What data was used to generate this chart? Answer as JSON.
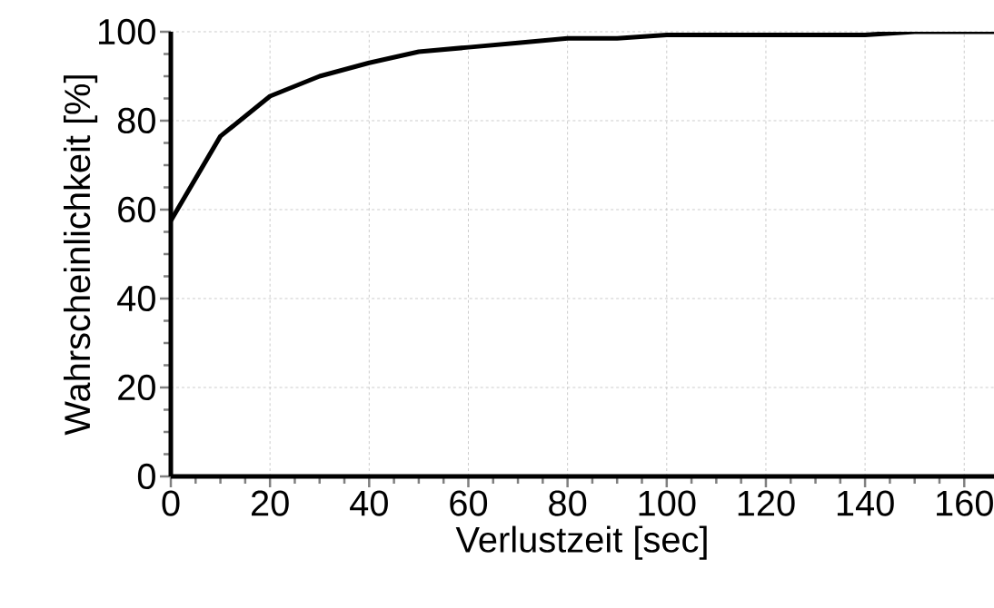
{
  "chart_data": {
    "type": "line",
    "xlabel": "Verlustzeit [sec]",
    "ylabel": "Wahrscheinlichkeit [%]",
    "x": [
      0,
      10,
      20,
      30,
      40,
      50,
      60,
      70,
      80,
      90,
      100,
      110,
      120,
      130,
      140,
      150,
      160,
      166
    ],
    "series": [
      {
        "color": "#000000",
        "values": [
          57.5,
          76.5,
          85.5,
          90,
          93,
          95.5,
          96.5,
          97.5,
          98.5,
          98.5,
          99.3,
          99.3,
          99.3,
          99.3,
          99.3,
          100,
          100,
          100
        ]
      }
    ],
    "xlim": [
      0,
      166
    ],
    "ylim": [
      0,
      100
    ],
    "xticks": [
      0,
      20,
      40,
      60,
      80,
      100,
      120,
      140,
      160
    ],
    "yticks": [
      0,
      20,
      40,
      60,
      80,
      100
    ],
    "grid": true,
    "marker": "none",
    "line_style": "solid"
  }
}
